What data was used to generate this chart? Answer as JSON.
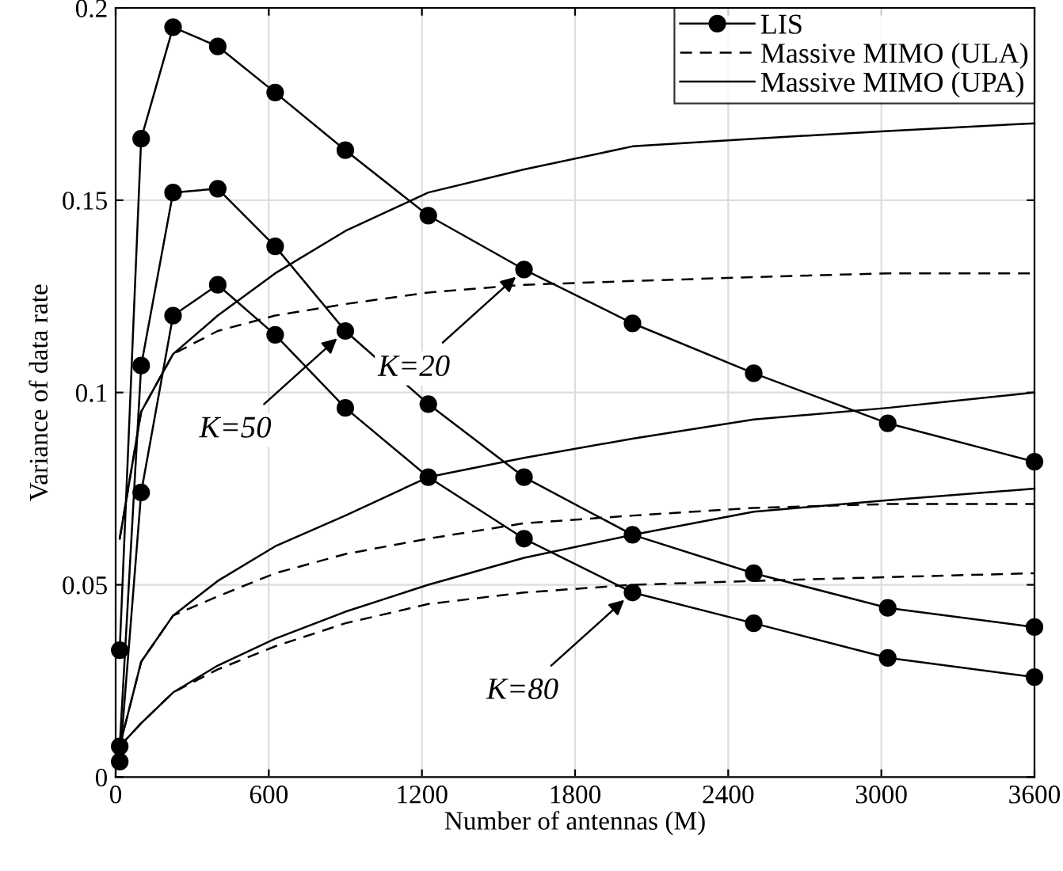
{
  "chart_data": {
    "type": "line",
    "xlabel": "Number of antennas (M)",
    "ylabel": "Variance of data rate",
    "x": [
      16,
      100,
      225,
      400,
      625,
      900,
      1225,
      1600,
      2025,
      2500,
      3025,
      3600
    ],
    "xlim": [
      0,
      3600
    ],
    "xticks": [
      0,
      600,
      1200,
      1800,
      2400,
      3000,
      3600
    ],
    "ylim": [
      0,
      0.2
    ],
    "yticks": [
      0,
      0.05,
      0.1,
      0.15,
      0.2
    ],
    "grid": true,
    "legend": "top right",
    "series": [
      {
        "name": "LIS",
        "color": "#000000",
        "marker": "circle",
        "line_style": "solid",
        "values": [
          0.033,
          0.166,
          0.195,
          0.19,
          0.178,
          0.163,
          0.146,
          0.132,
          0.118,
          0.105,
          0.092,
          0.082
        ]
      },
      {
        "color": "#000000",
        "marker": "circle",
        "line_style": "solid",
        "values": [
          0.008,
          0.107,
          0.152,
          0.153,
          0.138,
          0.116,
          0.097,
          0.078,
          0.063,
          0.053,
          0.044,
          0.039
        ]
      },
      {
        "color": "#000000",
        "marker": "circle",
        "line_style": "solid",
        "values": [
          0.004,
          0.074,
          0.12,
          0.128,
          0.115,
          0.096,
          0.078,
          0.062,
          0.048,
          0.04,
          0.031,
          0.026
        ]
      },
      {
        "name": "Massive MIMO (ULA)",
        "color": "#000000",
        "marker": "none",
        "line_style": "dashed",
        "values": [
          0.062,
          0.095,
          0.11,
          0.116,
          0.12,
          0.123,
          0.126,
          0.128,
          0.129,
          0.13,
          0.131,
          0.131
        ]
      },
      {
        "color": "#000000",
        "marker": "none",
        "line_style": "dashed",
        "values": [
          0.008,
          0.03,
          0.042,
          0.047,
          0.053,
          0.058,
          0.062,
          0.066,
          0.068,
          0.07,
          0.071,
          0.071
        ]
      },
      {
        "color": "#000000",
        "marker": "none",
        "line_style": "dashed",
        "values": [
          0.008,
          0.014,
          0.022,
          0.028,
          0.034,
          0.04,
          0.045,
          0.048,
          0.05,
          0.051,
          0.052,
          0.053
        ]
      },
      {
        "name": "Massive MIMO (UPA)",
        "color": "#000000",
        "marker": "none",
        "line_style": "solid",
        "values": [
          0.062,
          0.095,
          0.11,
          0.12,
          0.131,
          0.142,
          0.152,
          0.158,
          0.164,
          0.166,
          0.168,
          0.17
        ]
      },
      {
        "color": "#000000",
        "marker": "none",
        "line_style": "solid",
        "values": [
          0.008,
          0.03,
          0.042,
          0.051,
          0.06,
          0.068,
          0.078,
          0.083,
          0.088,
          0.093,
          0.096,
          0.1
        ]
      },
      {
        "color": "#000000",
        "marker": "none",
        "line_style": "solid",
        "values": [
          0.008,
          0.014,
          0.022,
          0.029,
          0.036,
          0.043,
          0.05,
          0.057,
          0.063,
          0.069,
          0.072,
          0.075
        ]
      }
    ],
    "annotations": [
      {
        "text": "K=20",
        "x": 1600,
        "y": 0.132
      },
      {
        "text": "K=50",
        "x": 900,
        "y": 0.116
      },
      {
        "text": "K=80",
        "x": 2025,
        "y": 0.048
      }
    ]
  }
}
